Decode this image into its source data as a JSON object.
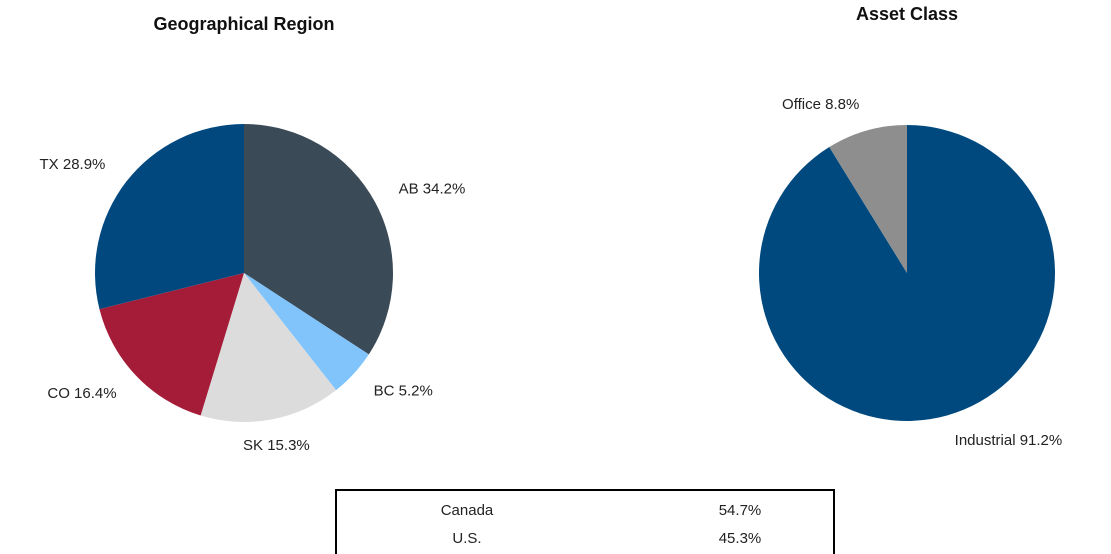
{
  "chart_data": [
    {
      "type": "pie",
      "title": "Geographical Region",
      "categories": [
        "AB",
        "BC",
        "SK",
        "CO",
        "TX"
      ],
      "values": [
        34.2,
        5.2,
        15.3,
        16.4,
        28.9
      ],
      "value_labels": [
        "34.2%",
        "5.2%",
        "15.3%",
        "16.4%",
        "28.9%"
      ],
      "colors": [
        "#3b4a57",
        "#80c4fb",
        "#dcdcdc",
        "#a51c38",
        "#00487e"
      ]
    },
    {
      "type": "pie",
      "title": "Asset Class",
      "categories": [
        "Industrial",
        "Office"
      ],
      "values": [
        91.2,
        8.8
      ],
      "value_labels": [
        "91.2%",
        "8.8%"
      ],
      "colors": [
        "#00497e",
        "#8e8e8e"
      ]
    }
  ],
  "table": {
    "rows": [
      [
        "Canada",
        "54.7%"
      ],
      [
        "U.S.",
        "45.3%"
      ]
    ]
  }
}
